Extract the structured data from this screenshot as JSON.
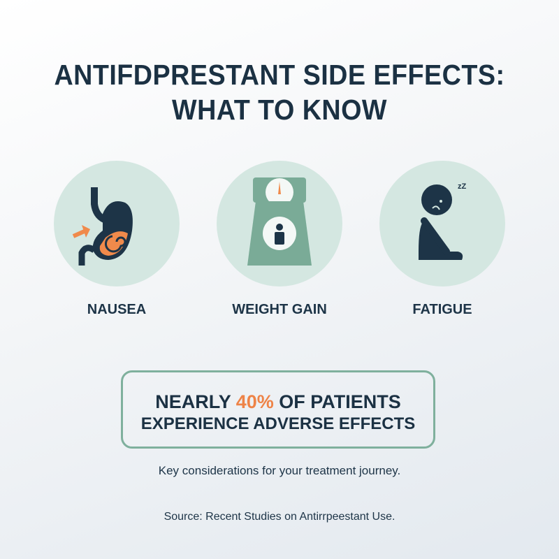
{
  "title": {
    "line1": "ANTIFDPRESTANT SIDE EFFECTS:",
    "line2": "WHAT TO KNOW"
  },
  "effects": [
    {
      "label": "NAUSEA",
      "icon": "stomach-icon"
    },
    {
      "label": "WEIGHT GAIN",
      "icon": "scale-icon"
    },
    {
      "label": "FATIGUE",
      "icon": "tired-person-icon"
    }
  ],
  "stat": {
    "prefix": "NEARLY ",
    "highlight": "40%",
    "suffix": " OF PATIENTS",
    "line2": "EXPERIENCE ADVERSE EFFECTS"
  },
  "tagline": "Key considerations for your treatment journey.",
  "source": "Source: Recent Studies on Antirrpeestant Use.",
  "colors": {
    "dark": "#1d3447",
    "accent": "#ee8347",
    "green": "#7fb09d",
    "circle": "#d4e7e1"
  }
}
